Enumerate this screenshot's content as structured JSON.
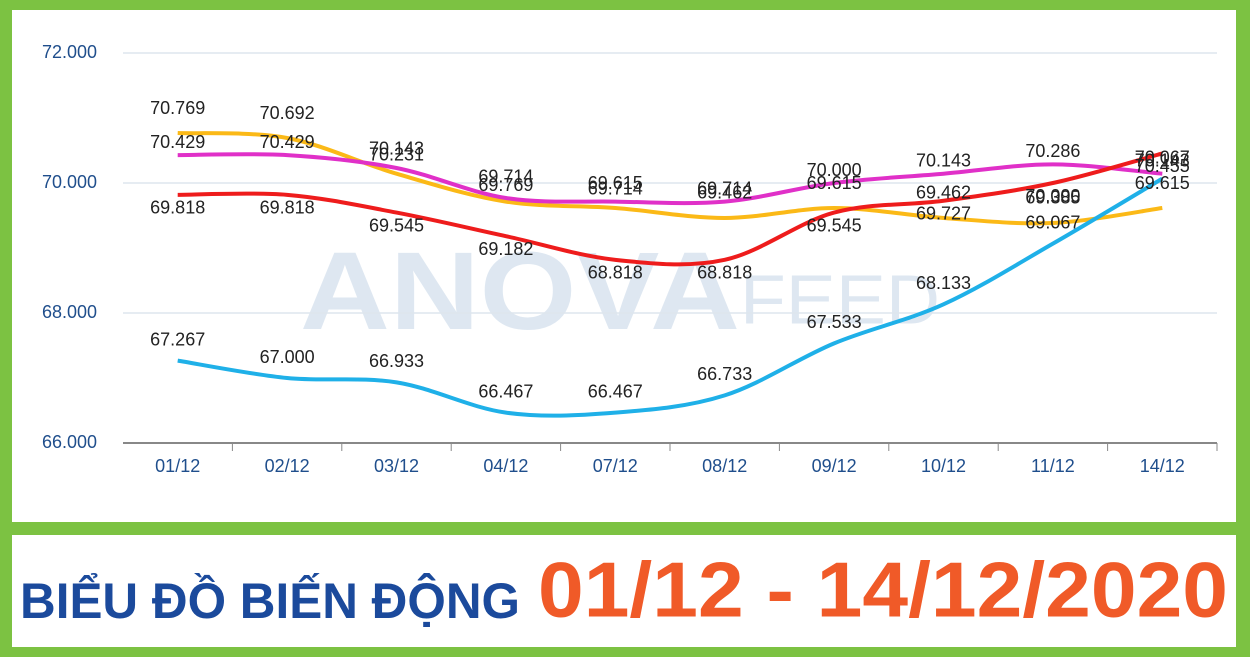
{
  "chart_data": {
    "type": "line",
    "title": "BIỂU ĐỒ BIẾN ĐỘNG",
    "subtitle": "01/12 - 14/12/2020",
    "watermark": [
      "ANOVA",
      "FEED"
    ],
    "categories": [
      "01/12",
      "02/12",
      "03/12",
      "04/12",
      "07/12",
      "08/12",
      "09/12",
      "10/12",
      "11/12",
      "14/12"
    ],
    "ylim": [
      66000,
      72000
    ],
    "yticks": [
      {
        "value": 66000,
        "label": "66.000"
      },
      {
        "value": 68000,
        "label": "68.000"
      },
      {
        "value": 70000,
        "label": "70.000"
      },
      {
        "value": 72000,
        "label": "72.000"
      }
    ],
    "grid": true,
    "series": [
      {
        "color": "#fbb917",
        "values": [
          70769,
          70692,
          70143,
          69714,
          69615,
          69462,
          69615,
          69462,
          69385,
          69615
        ],
        "value_labels": [
          "70.769",
          "70.692",
          "70.143",
          "69.714",
          "69.615",
          "69.462",
          "69.615",
          "69.462",
          "69.385",
          "69.615"
        ]
      },
      {
        "color": "#e030c8",
        "values": [
          70429,
          70429,
          70231,
          69769,
          69714,
          69714,
          70000,
          70143,
          70286,
          70143
        ],
        "value_labels": [
          "70.429",
          "70.429",
          "70.231",
          "69.769",
          "69.714",
          "69.714",
          "70.000",
          "70.143",
          "70.286",
          "70.143"
        ]
      },
      {
        "color": "#ee1c1c",
        "values": [
          69818,
          69818,
          69545,
          69182,
          68818,
          68818,
          69545,
          69727,
          70000,
          70455
        ],
        "value_labels": [
          "69.818",
          "69.818",
          "69.545",
          "69.182",
          "68.818",
          "68.818",
          "69.545",
          "69.727",
          "70.000",
          "70.455"
        ]
      },
      {
        "color": "#1fb0e8",
        "values": [
          67267,
          67000,
          66933,
          66467,
          66467,
          66733,
          67533,
          68133,
          69067,
          70067
        ],
        "value_labels": [
          "67.267",
          "67.000",
          "66.933",
          "66.467",
          "66.467",
          "66.733",
          "67.533",
          "68.133",
          "69.067",
          "70.067"
        ]
      }
    ]
  }
}
